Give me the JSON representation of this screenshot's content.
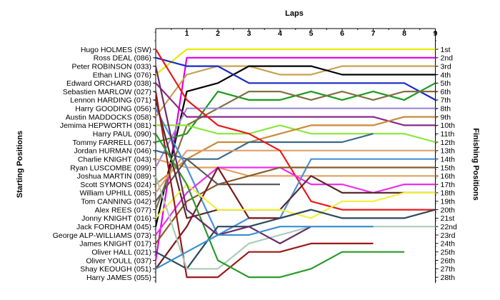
{
  "chart_data": {
    "type": "line",
    "xlabel": "Laps",
    "ylabel_left": "Starting Positions",
    "ylabel_right": "Finishing Positions",
    "laps": [
      1,
      2,
      3,
      4,
      5,
      6,
      7,
      8,
      9
    ],
    "drivers": [
      "Hugo HOLMES (SW)",
      "Ross DEAL (086)",
      "Peter ROBINSON (033)",
      "Ethan LING (076)",
      "Edward ORCHARD (038)",
      "Sebastien MARLOW (027)",
      "Lennon HARDING (071)",
      "Harry GOODING (056)",
      "Austin MADDOCKS (058)",
      "Jemima HEPWORTH (081)",
      "Harry PAUL (090)",
      "Tommy FARRELL (067)",
      "Jordan HURMAN (046)",
      "Charlie KNIGHT (043)",
      "Ryan LUSCOMBE (099)",
      "Joshua MARTIN (089)",
      "Scott SYMONS (024)",
      "William UPHILL (085)",
      "Tom CANNING (042)",
      "Alex REES (077)",
      "Jonny KNIGHT (016)",
      "Jack FORDHAM (045)",
      "George ALP-WILLIAMS (073)",
      "James KNIGHT (017)",
      "Oliver HALL (021)",
      "Oliver YOULL (037)",
      "Shay KEOUGH (051)",
      "Harry JAMES (055)"
    ],
    "finish_labels": [
      "1st",
      "2nd",
      "3rd",
      "4th",
      "5th",
      "6th",
      "7th",
      "8th",
      "9th",
      "10th",
      "11th",
      "12th",
      "13th",
      "14th",
      "15th",
      "16th",
      "17th",
      "18th",
      "19th",
      "20th",
      "21st",
      "22nd",
      "23rd",
      "24th",
      "25th",
      "26th",
      "27th",
      "28th"
    ],
    "series": [
      {
        "color": "#e8e800",
        "positions": [
          4,
          1,
          1,
          1,
          1,
          1,
          1,
          1,
          1,
          1
        ]
      },
      {
        "color": "#e000e0",
        "positions": [
          26,
          2,
          2,
          2,
          2,
          2,
          2,
          2,
          2,
          2
        ]
      },
      {
        "color": "#c8a050",
        "positions": [
          9,
          4,
          3,
          3,
          4,
          4,
          3,
          3,
          3,
          3
        ]
      },
      {
        "color": "#000000",
        "positions": [
          22,
          6,
          5,
          3,
          3,
          3,
          4,
          4,
          4,
          4
        ]
      },
      {
        "color": "#1a28c8",
        "positions": [
          2,
          3,
          3,
          5,
          5,
          5,
          5,
          5,
          5,
          7
        ]
      },
      {
        "color": "#1a9a1a",
        "positions": [
          12,
          11,
          6,
          7,
          7,
          6,
          7,
          6,
          7,
          5
        ]
      },
      {
        "color": "#807040",
        "positions": [
          20,
          10,
          8,
          6,
          6,
          7,
          6,
          7,
          6,
          6
        ]
      },
      {
        "color": "#9a8ad0",
        "positions": [
          15,
          8,
          8,
          8,
          8,
          8,
          8,
          8,
          8,
          8
        ]
      },
      {
        "color": "#8a2a8a",
        "positions": [
          5,
          9,
          9,
          9,
          9,
          9,
          9,
          9,
          10,
          10
        ]
      },
      {
        "color": "#8ae83a",
        "positions": [
          10,
          10,
          11,
          11,
          10,
          11,
          11,
          11,
          11,
          12
        ]
      },
      {
        "color": "#c88a3a",
        "positions": [
          17,
          14,
          12,
          12,
          11,
          10,
          10,
          10,
          9,
          9
        ]
      },
      {
        "color": "#3a6a8a",
        "positions": [
          13,
          14,
          14,
          12,
          12,
          12,
          12,
          11
        ]
      },
      {
        "color": "#e0a070",
        "positions": [
          18,
          13,
          13,
          13,
          13,
          13,
          13,
          13,
          13,
          13
        ]
      },
      {
        "color": "#e0a060",
        "positions": [
          14,
          15,
          15,
          16,
          16,
          16,
          16,
          16,
          16,
          16
        ]
      },
      {
        "color": "#e81a1a",
        "positions": [
          1,
          7,
          10,
          11,
          13,
          19,
          20,
          20,
          20,
          20
        ]
      },
      {
        "color": "#4a90e0",
        "positions": [
          8,
          15,
          23,
          21,
          21,
          14,
          14,
          14,
          14,
          14
        ]
      },
      {
        "color": "#ee30ee",
        "positions": [
          23,
          18,
          15,
          15,
          15,
          17,
          17,
          18,
          17,
          17
        ]
      },
      {
        "color": "#8a5a2a",
        "positions": [
          24,
          19,
          17,
          16,
          15,
          15,
          15,
          15,
          15,
          15
        ]
      },
      {
        "color": "#5a5a5a",
        "positions": [
          19,
          14,
          17,
          17,
          17
        ]
      },
      {
        "color": "#5a2a2a",
        "positions": [
          7,
          21,
          20,
          20,
          20,
          16,
          18,
          18,
          18,
          18
        ]
      },
      {
        "color": "#7a1a1a",
        "positions": [
          27,
          22,
          15,
          21,
          21,
          20
        ]
      },
      {
        "color": "#f0f040",
        "positions": [
          21,
          17,
          20,
          20,
          20,
          21,
          19,
          19,
          18,
          18
        ]
      },
      {
        "color": "#2a4a5a",
        "positions": [
          25,
          27,
          22,
          22,
          21,
          20,
          21,
          21,
          21,
          20
        ]
      },
      {
        "color": "#9a1a1a",
        "positions": [
          6,
          28,
          28,
          25,
          25,
          24,
          24,
          24
        ]
      },
      {
        "color": "#aaccbb",
        "positions": [
          16,
          27,
          27,
          24,
          23,
          22,
          22,
          22,
          22,
          22
        ]
      },
      {
        "color": "#2a9a2a",
        "positions": [
          11,
          17,
          26,
          28,
          28,
          27,
          25,
          25,
          25
        ]
      },
      {
        "color": "#6a2a6a",
        "positions": [
          3,
          20,
          23,
          22,
          24,
          22
        ]
      },
      {
        "color": "#3a90d0",
        "positions": [
          27,
          25,
          23,
          23,
          22,
          22,
          22,
          22
        ]
      }
    ]
  }
}
